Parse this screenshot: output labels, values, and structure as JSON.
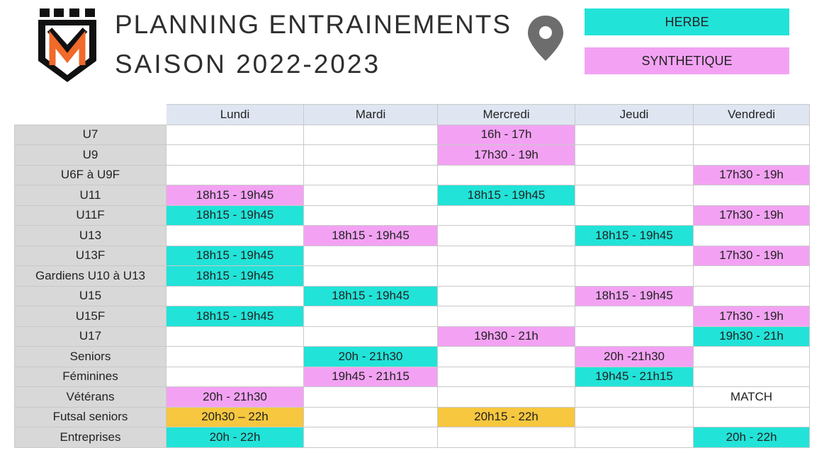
{
  "header": {
    "title_line1": "PLANNING ENTRAINEMENTS",
    "title_line2": "SAISON 2022-2023",
    "logo_icon": "club-crest-icon",
    "location_icon": "map-pin-icon"
  },
  "legend": {
    "herbe": {
      "label": "HERBE",
      "color": "#22e3d8"
    },
    "synthetique": {
      "label": "SYNTHETIQUE",
      "color": "#f3a2f3"
    }
  },
  "colors": {
    "futsal": "#f6c73f",
    "header": "#dfe6f2",
    "category": "#d8d8d8"
  },
  "schedule": {
    "days": [
      "Lundi",
      "Mardi",
      "Mercredi",
      "Jeudi",
      "Vendredi"
    ],
    "rows": [
      {
        "category": "U7",
        "cells": [
          null,
          null,
          {
            "text": "16h - 17h",
            "type": "synth"
          },
          null,
          null
        ]
      },
      {
        "category": "U9",
        "cells": [
          null,
          null,
          {
            "text": "17h30 - 19h",
            "type": "synth"
          },
          null,
          null
        ]
      },
      {
        "category": "U6F à U9F",
        "cells": [
          null,
          null,
          null,
          null,
          {
            "text": "17h30 - 19h",
            "type": "synth"
          }
        ]
      },
      {
        "category": "U11",
        "cells": [
          {
            "text": "18h15 - 19h45",
            "type": "synth"
          },
          null,
          {
            "text": "18h15 - 19h45",
            "type": "herbe"
          },
          null,
          null
        ]
      },
      {
        "category": "U11F",
        "cells": [
          {
            "text": "18h15 - 19h45",
            "type": "herbe"
          },
          null,
          null,
          null,
          {
            "text": "17h30 - 19h",
            "type": "synth"
          }
        ]
      },
      {
        "category": "U13",
        "cells": [
          null,
          {
            "text": "18h15 - 19h45",
            "type": "synth"
          },
          null,
          {
            "text": "18h15 - 19h45",
            "type": "herbe"
          },
          null
        ]
      },
      {
        "category": "U13F",
        "cells": [
          {
            "text": "18h15 - 19h45",
            "type": "herbe"
          },
          null,
          null,
          null,
          {
            "text": "17h30 - 19h",
            "type": "synth"
          }
        ]
      },
      {
        "category": "Gardiens U10 à U13",
        "cells": [
          {
            "text": "18h15 - 19h45",
            "type": "herbe"
          },
          null,
          null,
          null,
          null
        ]
      },
      {
        "category": "U15",
        "cells": [
          null,
          {
            "text": "18h15 - 19h45",
            "type": "herbe"
          },
          null,
          {
            "text": "18h15 - 19h45",
            "type": "synth"
          },
          null
        ]
      },
      {
        "category": "U15F",
        "cells": [
          {
            "text": "18h15 - 19h45",
            "type": "herbe"
          },
          null,
          null,
          null,
          {
            "text": "17h30 - 19h",
            "type": "synth"
          }
        ]
      },
      {
        "category": "U17",
        "cells": [
          null,
          null,
          {
            "text": "19h30 - 21h",
            "type": "synth"
          },
          null,
          {
            "text": "19h30 - 21h",
            "type": "herbe"
          }
        ]
      },
      {
        "category": "Seniors",
        "cells": [
          null,
          {
            "text": "20h - 21h30",
            "type": "herbe"
          },
          null,
          {
            "text": "20h -21h30",
            "type": "synth"
          },
          null
        ]
      },
      {
        "category": "Féminines",
        "cells": [
          null,
          {
            "text": "19h45 - 21h15",
            "type": "synth"
          },
          null,
          {
            "text": "19h45 - 21h15",
            "type": "herbe"
          },
          null
        ]
      },
      {
        "category": "Vétérans",
        "cells": [
          {
            "text": "20h - 21h30",
            "type": "synth"
          },
          null,
          null,
          null,
          {
            "text": "MATCH",
            "type": "plain"
          }
        ]
      },
      {
        "category": "Futsal seniors",
        "cells": [
          {
            "text": "20h30 – 22h",
            "type": "futsal"
          },
          null,
          {
            "text": "20h15 - 22h",
            "type": "futsal"
          },
          null,
          null
        ]
      },
      {
        "category": "Entreprises",
        "cells": [
          {
            "text": "20h - 22h",
            "type": "herbe"
          },
          null,
          null,
          null,
          {
            "text": "20h - 22h",
            "type": "herbe"
          }
        ]
      }
    ]
  }
}
